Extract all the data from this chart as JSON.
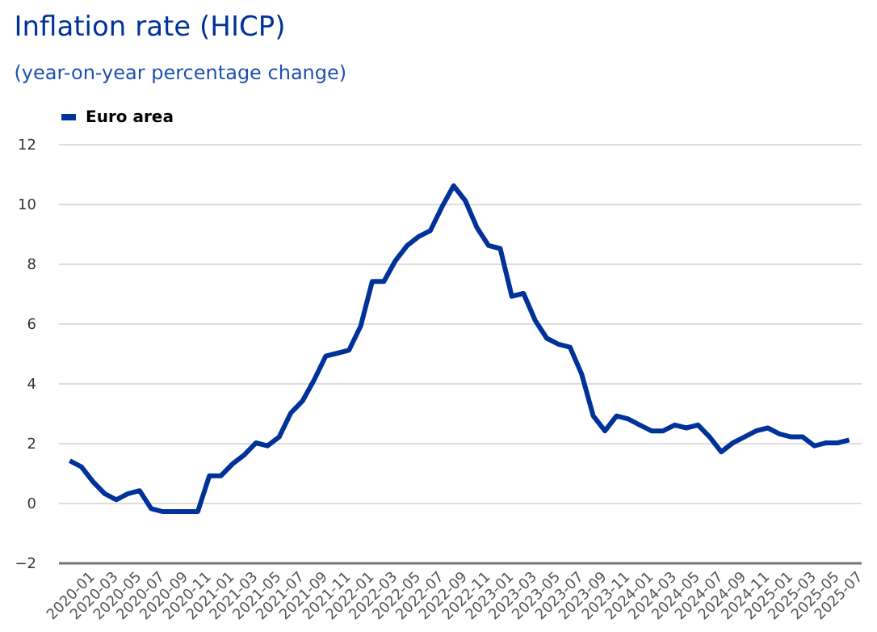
{
  "chart_data": {
    "type": "line",
    "title": "Inflation rate (HICP)",
    "subtitle": "(year-on-year percentage change)",
    "categories": [
      "2020-01",
      null,
      "2020-03",
      null,
      "2020-05",
      null,
      "2020-07",
      null,
      "2020-09",
      null,
      "2020-11",
      null,
      "2021-01",
      null,
      "2021-03",
      null,
      "2021-05",
      null,
      "2021-07",
      null,
      "2021-09",
      null,
      "2021-11",
      null,
      "2022-01",
      null,
      "2022-03",
      null,
      "2022-05",
      null,
      "2022-07",
      null,
      "2022-09",
      null,
      "2022-11",
      null,
      "2023-01",
      null,
      "2023-03",
      null,
      "2023-05",
      null,
      "2023-07",
      null,
      "2023-09",
      null,
      "2023-11",
      null,
      "2024-01",
      null,
      "2024-03",
      null,
      "2024-05",
      null,
      "2024-07",
      null,
      "2024-09",
      null,
      "2024-11",
      null,
      "2025-01",
      null,
      "2025-03",
      null,
      "2025-05",
      null,
      "2025-07",
      null
    ],
    "series": [
      {
        "name": "Euro area",
        "color": "#003299",
        "values": [
          1.4,
          1.2,
          0.7,
          0.3,
          0.1,
          0.3,
          0.4,
          -0.2,
          -0.3,
          -0.3,
          -0.3,
          -0.3,
          0.9,
          0.9,
          1.3,
          1.6,
          2.0,
          1.9,
          2.2,
          3.0,
          3.4,
          4.1,
          4.9,
          5.0,
          5.1,
          5.9,
          7.4,
          7.4,
          8.1,
          8.6,
          8.9,
          9.1,
          9.9,
          10.6,
          10.1,
          9.2,
          8.6,
          8.5,
          6.9,
          7.0,
          6.1,
          5.5,
          5.3,
          5.2,
          4.3,
          2.9,
          2.4,
          2.9,
          2.8,
          2.6,
          2.4,
          2.4,
          2.6,
          2.5,
          2.6,
          2.2,
          1.7,
          2.0,
          2.2,
          2.4,
          2.5,
          2.3,
          2.2,
          2.2,
          1.9,
          2.0,
          2.0,
          2.1
        ]
      }
    ],
    "ylim": [
      -2,
      12
    ],
    "yticks": [
      -2,
      0,
      2,
      4,
      6,
      8,
      10,
      12
    ],
    "grid": "y",
    "legend": "top left",
    "marker": "none",
    "line_style": "solid"
  }
}
